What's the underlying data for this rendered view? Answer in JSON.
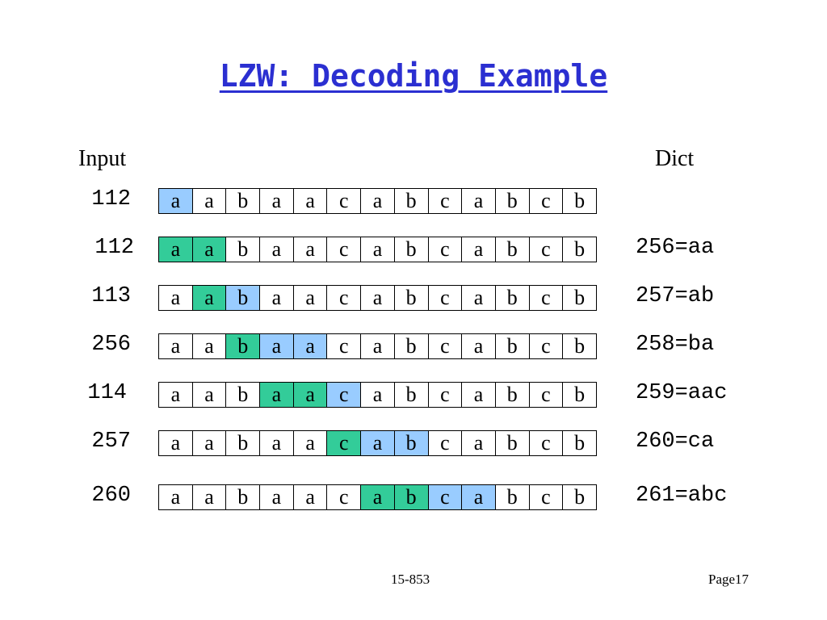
{
  "title": "LZW: Decoding Example",
  "headers": {
    "input": "Input",
    "dict": "Dict"
  },
  "rows": [
    {
      "code": "112",
      "dict": "",
      "highlight": [
        "nxt",
        "",
        "",
        "",
        "",
        "",
        "",
        "",
        "",
        "",
        "",
        "",
        ""
      ]
    },
    {
      "code": "112",
      "dict": "256=aa",
      "highlight": [
        "cur",
        "cur",
        "",
        "",
        "",
        "",
        "",
        "",
        "",
        "",
        "",
        "",
        ""
      ]
    },
    {
      "code": "113",
      "dict": "257=ab",
      "highlight": [
        "",
        "cur",
        "nxt",
        "",
        "",
        "",
        "",
        "",
        "",
        "",
        "",
        "",
        ""
      ]
    },
    {
      "code": "256",
      "dict": "258=ba",
      "highlight": [
        "",
        "",
        "cur",
        "nxt",
        "nxt",
        "",
        "",
        "",
        "",
        "",
        "",
        "",
        ""
      ]
    },
    {
      "code": "114",
      "dict": "259=aac",
      "highlight": [
        "",
        "",
        "",
        "cur",
        "cur",
        "nxt",
        "",
        "",
        "",
        "",
        "",
        "",
        ""
      ]
    },
    {
      "code": "257",
      "dict": "260=ca",
      "highlight": [
        "",
        "",
        "",
        "",
        "",
        "cur",
        "nxt",
        "nxt",
        "",
        "",
        "",
        "",
        ""
      ]
    },
    {
      "code": "260",
      "dict": "261=abc",
      "highlight": [
        "",
        "",
        "",
        "",
        "",
        "",
        "cur",
        "cur",
        "nxt",
        "nxt",
        "",
        "",
        ""
      ]
    }
  ],
  "sequence": [
    "a",
    "a",
    "b",
    "a",
    "a",
    "c",
    "a",
    "b",
    "c",
    "a",
    "b",
    "c",
    "b"
  ],
  "colors": {
    "current": "#33cc99",
    "next": "#99ccff",
    "title": "#2b2fd1"
  },
  "footer": {
    "course": "15-853",
    "page": "Page17"
  }
}
